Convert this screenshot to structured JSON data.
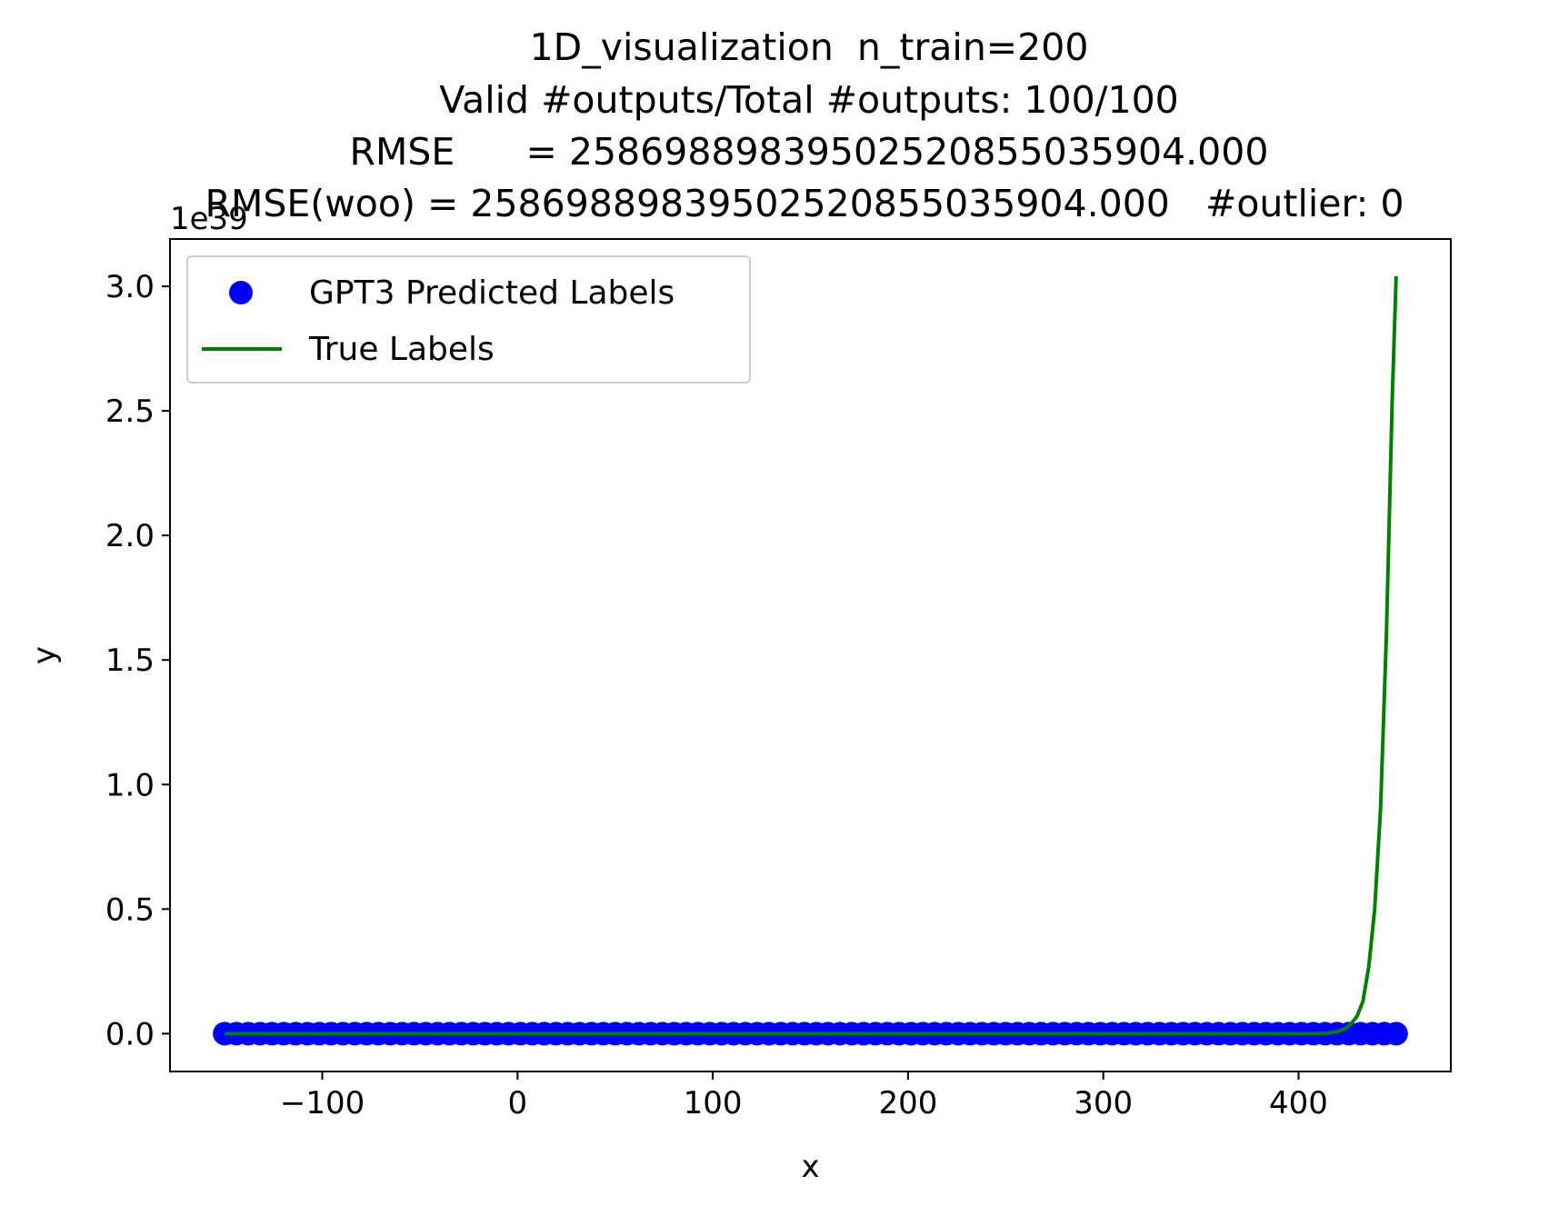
{
  "chart_data": {
    "type": "scatter",
    "title_lines": [
      "1D_visualization  n_train=200",
      "Valid #outputs/Total #outputs: 100/100",
      "RMSE      = 2586988983950252085503590​4.000",
      "RMSE(woo) = 25869889839502520855035904.000   #outlier: 0"
    ],
    "xlabel": "x",
    "ylabel": "y",
    "y_offset_label": "1e39",
    "xlim": [
      -178,
      478
    ],
    "ylim": [
      -0.152,
      3.19
    ],
    "x_ticks": [
      -100,
      0,
      100,
      200,
      300,
      400
    ],
    "x_tick_labels": [
      "−100",
      "0",
      "100",
      "200",
      "300",
      "400"
    ],
    "y_ticks": [
      0.0,
      0.5,
      1.0,
      1.5,
      2.0,
      2.5,
      3.0
    ],
    "y_tick_labels": [
      "0.0",
      "0.5",
      "1.0",
      "1.5",
      "2.0",
      "2.5",
      "3.0"
    ],
    "legend_position": "upper-left",
    "series": [
      {
        "name": "GPT3 Predicted Labels",
        "kind": "scatter",
        "color": "#0000ff",
        "x_start": -150,
        "x_end": 450,
        "n_points": 100,
        "y_constant": 0.0
      },
      {
        "name": "True Labels",
        "kind": "line",
        "color": "#008000",
        "x": [
          -150,
          400,
          410,
          415,
          420,
          424,
          427,
          430,
          433,
          436,
          439,
          442,
          445,
          448,
          450
        ],
        "y": [
          0.0,
          0.0,
          0.0005,
          0.002,
          0.008,
          0.02,
          0.04,
          0.07,
          0.13,
          0.27,
          0.5,
          0.9,
          1.6,
          2.55,
          3.04
        ]
      }
    ]
  }
}
